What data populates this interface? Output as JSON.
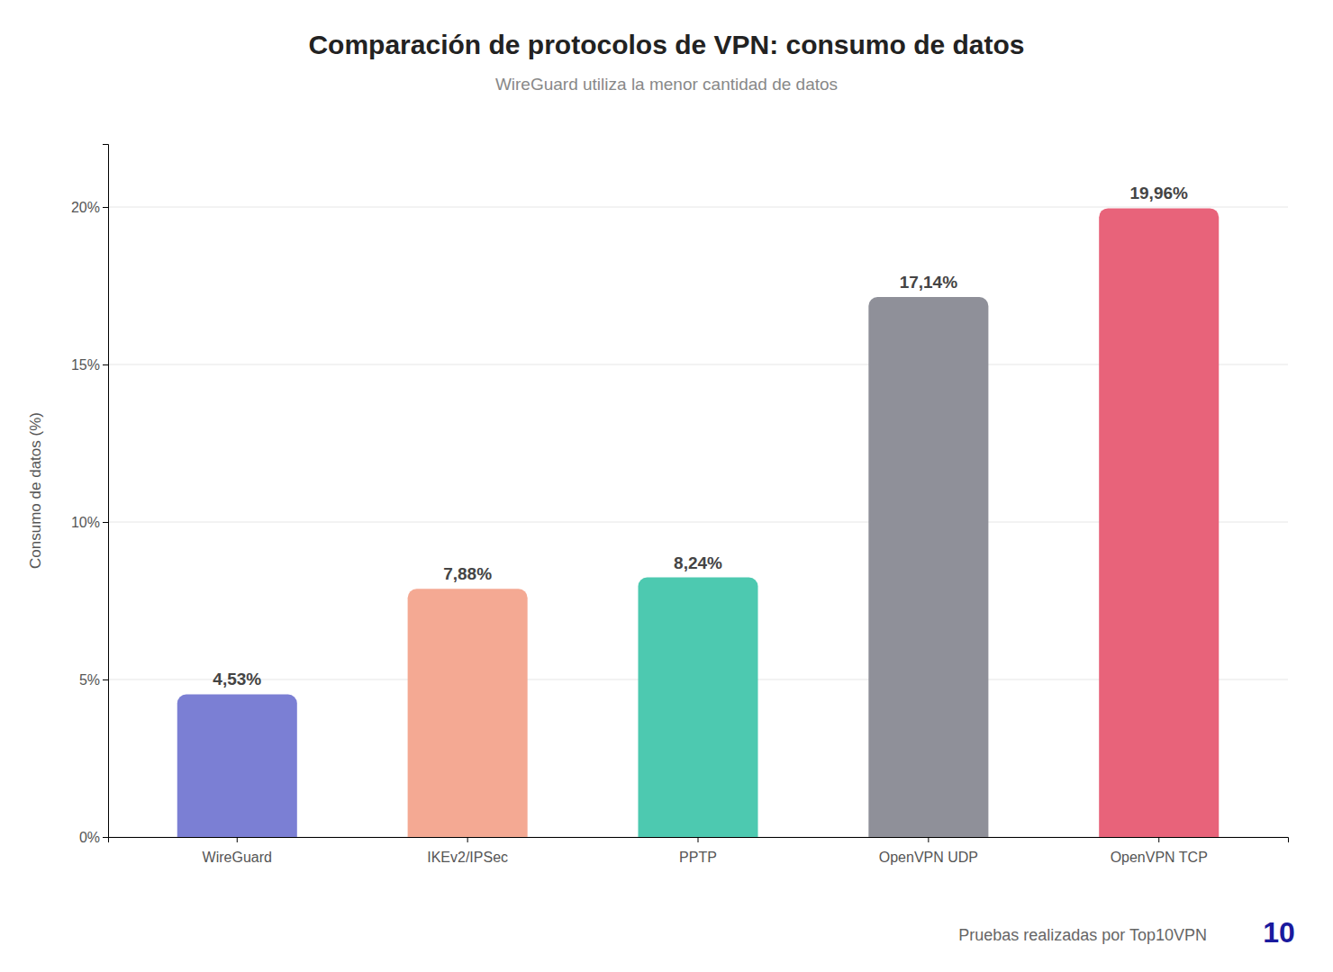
{
  "chart_data": {
    "type": "bar",
    "title": "Comparación de protocolos de VPN: consumo de datos",
    "subtitle": "WireGuard utiliza la menor cantidad de datos",
    "categories": [
      "WireGuard",
      "IKEv2/IPSec",
      "PPTP",
      "OpenVPN UDP",
      "OpenVPN TCP"
    ],
    "values": [
      4.53,
      7.88,
      8.24,
      17.14,
      19.96
    ],
    "value_labels": [
      "4,53%",
      "7,88%",
      "8,24%",
      "17,14%",
      "19,96%"
    ],
    "data_labels": true,
    "colors": [
      "#7b7fd4",
      "#f4a993",
      "#4dc9b0",
      "#8f9099",
      "#e8637a"
    ],
    "ylabel": "Consumo de datos (%)",
    "ylim": [
      0,
      22
    ],
    "yticks": [
      {
        "value": 0,
        "label": "0%"
      },
      {
        "value": 5,
        "label": "5%"
      },
      {
        "value": 10,
        "label": "10%"
      },
      {
        "value": 15,
        "label": "15%"
      },
      {
        "value": 20,
        "label": "20%"
      }
    ],
    "grid": true,
    "annotations": [
      "Pruebas realizadas por Top10VPN",
      "10"
    ]
  }
}
